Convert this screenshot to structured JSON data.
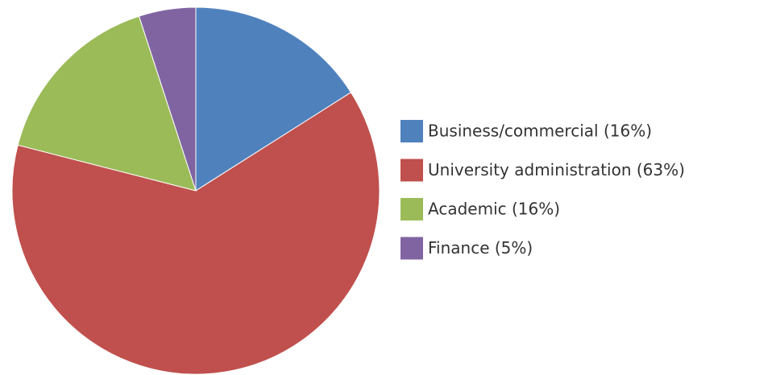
{
  "chart_data": {
    "type": "pie",
    "categories": [
      "Business/commercial (16%)",
      "University administration (63%)",
      "Academic (16%)",
      "Finance (5%)"
    ],
    "values": [
      16,
      63,
      16,
      5
    ],
    "colors": [
      "#4f81bd",
      "#c0504d",
      "#9bbb59",
      "#8064a2"
    ],
    "legend": "right"
  }
}
